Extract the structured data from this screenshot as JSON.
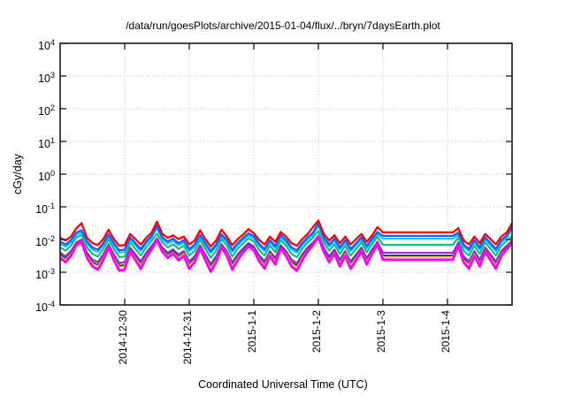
{
  "title": "/data/run/goesPlots/archive/2015-01-04/flux/../bryn/7daysEarth.plot",
  "x_axis_label": "Coordinated Universal Time (UTC)",
  "y_axis_label": "cGy/day",
  "colors": {
    "background": "#ffffff",
    "border": "#1a1a1a",
    "grid": "#b8b8b8",
    "text": "#000000"
  },
  "chart_data": {
    "type": "line",
    "title": "/data/run/goesPlots/archive/2015-01-04/flux/../bryn/7daysEarth.plot",
    "xlabel": "Coordinated Universal Time (UTC)",
    "ylabel": "cGy/day",
    "grid": {
      "show": true,
      "style": "dotted"
    },
    "legend": "none",
    "x_axis": {
      "unit": "days since 2014-12-29 00:00 UTC",
      "range_days": [
        0,
        7
      ],
      "sample_step_days": 0.0833333,
      "tick_days": [
        1,
        2,
        3,
        4,
        5,
        6
      ],
      "tick_labels": [
        "2014-12-30",
        "2014-12-31",
        "2015-1-1",
        "2015-1-2",
        "2015-1-3",
        "2015-1-4"
      ]
    },
    "y_axis": {
      "scale": "log10",
      "unit": "cGy/day",
      "range_log": [
        -4,
        4
      ],
      "exponents": [
        4,
        3,
        2,
        1,
        0,
        -1,
        -2,
        -3,
        -4
      ]
    },
    "flat_data_gap_days": [
      5.0,
      6.083
    ],
    "series": [
      {
        "name": "green",
        "color": "#00c08a",
        "width": 2.1,
        "log10_values": [
          -2.24,
          -2.34,
          -2.19,
          -1.94,
          -1.86,
          -2.24,
          -2.44,
          -2.52,
          -2.29,
          -1.99,
          -2.29,
          -2.54,
          -2.52,
          -2.09,
          -2.29,
          -2.49,
          -2.24,
          -2.04,
          -1.82,
          -2.09,
          -2.24,
          -2.14,
          -2.29,
          -2.19,
          -2.49,
          -2.34,
          -2.02,
          -2.29,
          -2.56,
          -2.34,
          -1.99,
          -2.19,
          -2.52,
          -2.29,
          -2.12,
          -1.96,
          -2.06,
          -2.32,
          -2.49,
          -2.19,
          -2.39,
          -2.02,
          -2.19,
          -2.44,
          -2.54,
          -2.29,
          -2.09,
          -1.94,
          -1.74,
          -2.09,
          -2.34,
          -2.14,
          -2.44,
          -2.19,
          -2.49,
          -2.29,
          -2.09,
          -2.39,
          -2.14,
          -1.92,
          -2.16,
          -2.16,
          -2.16,
          -2.16,
          -2.16,
          -2.16,
          -2.16,
          -2.16,
          -2.16,
          -2.16,
          -2.16,
          -2.16,
          -2.16,
          -2.16,
          -1.94,
          -2.34,
          -2.49,
          -2.19,
          -2.44,
          -2.09,
          -2.29,
          -2.49,
          -2.19,
          -2.04,
          -1.89
        ]
      },
      {
        "name": "brown",
        "color": "#a0522d",
        "width": 1.6,
        "log10_values": [
          -2.39,
          -2.5,
          -2.34,
          -2.08,
          -1.99,
          -2.39,
          -2.6,
          -2.68,
          -2.44,
          -2.13,
          -2.44,
          -2.71,
          -2.68,
          -2.23,
          -2.44,
          -2.65,
          -2.39,
          -2.18,
          -1.95,
          -2.23,
          -2.39,
          -2.29,
          -2.44,
          -2.34,
          -2.65,
          -2.5,
          -2.16,
          -2.44,
          -2.73,
          -2.5,
          -2.13,
          -2.34,
          -2.68,
          -2.44,
          -2.26,
          -2.1,
          -2.2,
          -2.47,
          -2.65,
          -2.34,
          -2.55,
          -2.16,
          -2.34,
          -2.6,
          -2.71,
          -2.44,
          -2.23,
          -2.08,
          -1.87,
          -2.23,
          -2.5,
          -2.29,
          -2.6,
          -2.34,
          -2.65,
          -2.44,
          -2.23,
          -2.55,
          -2.29,
          -2.05,
          -2.41,
          -2.41,
          -2.41,
          -2.41,
          -2.41,
          -2.41,
          -2.41,
          -2.41,
          -2.41,
          -2.41,
          -2.41,
          -2.41,
          -2.41,
          -2.41,
          -2.08,
          -2.5,
          -2.65,
          -2.34,
          -2.6,
          -2.23,
          -2.44,
          -2.65,
          -2.34,
          -2.18,
          -2.02
        ]
      },
      {
        "name": "purple",
        "color": "#9a30c8",
        "width": 1.9,
        "log10_values": [
          -2.41,
          -2.52,
          -2.36,
          -2.1,
          -2.01,
          -2.41,
          -2.62,
          -2.7,
          -2.46,
          -2.15,
          -2.46,
          -2.73,
          -2.7,
          -2.25,
          -2.46,
          -2.67,
          -2.41,
          -2.2,
          -1.97,
          -2.25,
          -2.41,
          -2.31,
          -2.46,
          -2.36,
          -2.67,
          -2.52,
          -2.18,
          -2.46,
          -2.75,
          -2.52,
          -2.15,
          -2.36,
          -2.7,
          -2.46,
          -2.28,
          -2.12,
          -2.22,
          -2.49,
          -2.67,
          -2.36,
          -2.57,
          -2.18,
          -2.36,
          -2.62,
          -2.73,
          -2.46,
          -2.25,
          -2.1,
          -1.89,
          -2.25,
          -2.52,
          -2.31,
          -2.62,
          -2.36,
          -2.67,
          -2.46,
          -2.25,
          -2.57,
          -2.31,
          -2.07,
          -2.4,
          -2.4,
          -2.4,
          -2.4,
          -2.4,
          -2.4,
          -2.4,
          -2.4,
          -2.4,
          -2.4,
          -2.4,
          -2.4,
          -2.4,
          -2.4,
          -2.1,
          -2.52,
          -2.67,
          -2.36,
          -2.62,
          -2.25,
          -2.46,
          -2.67,
          -2.36,
          -2.2,
          -2.04
        ]
      },
      {
        "name": "navy",
        "color": "#202898",
        "width": 1.9,
        "log10_values": [
          -2.47,
          -2.58,
          -2.42,
          -2.14,
          -2.05,
          -2.47,
          -2.69,
          -2.78,
          -2.53,
          -2.2,
          -2.53,
          -2.8,
          -2.78,
          -2.31,
          -2.53,
          -2.75,
          -2.47,
          -2.25,
          -2.01,
          -2.31,
          -2.47,
          -2.36,
          -2.53,
          -2.42,
          -2.75,
          -2.58,
          -2.23,
          -2.53,
          -2.82,
          -2.58,
          -2.2,
          -2.42,
          -2.78,
          -2.53,
          -2.34,
          -2.16,
          -2.27,
          -2.56,
          -2.75,
          -2.42,
          -2.64,
          -2.23,
          -2.42,
          -2.69,
          -2.8,
          -2.53,
          -2.31,
          -2.14,
          -1.92,
          -2.31,
          -2.58,
          -2.36,
          -2.69,
          -2.42,
          -2.75,
          -2.53,
          -2.31,
          -2.64,
          -2.36,
          -2.12,
          -2.49,
          -2.49,
          -2.49,
          -2.49,
          -2.49,
          -2.49,
          -2.49,
          -2.49,
          -2.49,
          -2.49,
          -2.49,
          -2.49,
          -2.49,
          -2.49,
          -2.14,
          -2.58,
          -2.75,
          -2.42,
          -2.69,
          -2.31,
          -2.53,
          -2.75,
          -2.42,
          -2.25,
          -2.09
        ]
      },
      {
        "name": "yellow",
        "color": "#f2e400",
        "width": 2.1,
        "log10_values": [
          -2.51,
          -2.63,
          -2.45,
          -2.17,
          -2.07,
          -2.51,
          -2.74,
          -2.83,
          -2.57,
          -2.22,
          -2.57,
          -2.86,
          -2.83,
          -2.34,
          -2.57,
          -2.8,
          -2.51,
          -2.28,
          -2.03,
          -2.34,
          -2.51,
          -2.4,
          -2.57,
          -2.45,
          -2.8,
          -2.63,
          -2.26,
          -2.57,
          -2.88,
          -2.63,
          -2.22,
          -2.45,
          -2.83,
          -2.57,
          -2.37,
          -2.19,
          -2.3,
          -2.6,
          -2.8,
          -2.45,
          -2.68,
          -2.26,
          -2.45,
          -2.74,
          -2.86,
          -2.57,
          -2.34,
          -2.17,
          -1.94,
          -2.34,
          -2.63,
          -2.4,
          -2.74,
          -2.45,
          -2.8,
          -2.57,
          -2.34,
          -2.68,
          -2.4,
          -2.14,
          -2.54,
          -2.54,
          -2.54,
          -2.54,
          -2.54,
          -2.54,
          -2.54,
          -2.54,
          -2.54,
          -2.54,
          -2.54,
          -2.54,
          -2.54,
          -2.54,
          -2.17,
          -2.63,
          -2.8,
          -2.45,
          -2.74,
          -2.34,
          -2.57,
          -2.8,
          -2.45,
          -2.28,
          -2.11
        ]
      },
      {
        "name": "magenta",
        "color": "#ff00ff",
        "width": 3,
        "log10_values": [
          -2.56,
          -2.69,
          -2.5,
          -2.17,
          -2.07,
          -2.56,
          -2.82,
          -2.92,
          -2.63,
          -2.24,
          -2.63,
          -2.95,
          -2.92,
          -2.37,
          -2.63,
          -2.89,
          -2.56,
          -2.3,
          -2.01,
          -2.37,
          -2.56,
          -2.43,
          -2.63,
          -2.5,
          -2.89,
          -2.69,
          -2.27,
          -2.63,
          -2.98,
          -2.69,
          -2.24,
          -2.5,
          -2.92,
          -2.63,
          -2.4,
          -2.2,
          -2.33,
          -2.66,
          -2.89,
          -2.5,
          -2.76,
          -2.27,
          -2.5,
          -2.82,
          -2.95,
          -2.63,
          -2.37,
          -2.17,
          -1.91,
          -2.37,
          -2.69,
          -2.43,
          -2.82,
          -2.5,
          -2.89,
          -2.63,
          -2.37,
          -2.76,
          -2.43,
          -2.14,
          -2.62,
          -2.62,
          -2.62,
          -2.62,
          -2.62,
          -2.62,
          -2.62,
          -2.62,
          -2.62,
          -2.62,
          -2.62,
          -2.62,
          -2.62,
          -2.62,
          -2.17,
          -2.69,
          -2.89,
          -2.5,
          -2.82,
          -2.37,
          -2.63,
          -2.89,
          -2.5,
          -2.3,
          -2.11
        ]
      },
      {
        "name": "cyan",
        "color": "#00c0f0",
        "width": 1.8,
        "log10_values": [
          -2.13,
          -2.22,
          -2.09,
          -1.86,
          -1.79,
          -2.13,
          -2.31,
          -2.38,
          -2.18,
          -1.91,
          -2.18,
          -2.4,
          -2.38,
          -2.0,
          -2.18,
          -2.36,
          -2.13,
          -1.95,
          -1.65,
          -2.0,
          -2.13,
          -2.04,
          -2.18,
          -2.09,
          -2.36,
          -2.22,
          -1.93,
          -2.18,
          -2.42,
          -2.22,
          -1.91,
          -2.09,
          -2.38,
          -2.18,
          -2.02,
          -1.88,
          -1.97,
          -2.2,
          -2.36,
          -2.09,
          -2.27,
          -1.93,
          -2.09,
          -2.31,
          -2.4,
          -2.18,
          -2.0,
          -1.86,
          -1.57,
          -2.0,
          -2.22,
          -2.04,
          -2.31,
          -2.09,
          -2.36,
          -2.18,
          -2.0,
          -2.27,
          -2.04,
          -1.84,
          -1.97,
          -1.97,
          -1.97,
          -1.97,
          -1.97,
          -1.97,
          -1.97,
          -1.97,
          -1.97,
          -1.97,
          -1.97,
          -1.97,
          -1.97,
          -1.97,
          -1.86,
          -2.22,
          -2.36,
          -2.09,
          -2.31,
          -2.0,
          -2.18,
          -2.36,
          -2.09,
          -1.95,
          -1.69
        ]
      },
      {
        "name": "blue",
        "color": "#1e5aff",
        "width": 2.3,
        "log10_values": [
          -2.06,
          -2.15,
          -2.02,
          -1.79,
          -1.72,
          -2.06,
          -2.24,
          -2.31,
          -2.11,
          -1.84,
          -2.11,
          -2.33,
          -2.31,
          -1.93,
          -2.11,
          -2.29,
          -2.06,
          -1.88,
          -1.58,
          -1.93,
          -2.06,
          -1.97,
          -2.11,
          -2.02,
          -2.29,
          -2.15,
          -1.86,
          -2.11,
          -2.35,
          -2.15,
          -1.84,
          -2.02,
          -2.31,
          -2.11,
          -1.95,
          -1.81,
          -1.9,
          -2.13,
          -2.29,
          -2.02,
          -2.2,
          -1.86,
          -2.02,
          -2.24,
          -2.33,
          -2.11,
          -1.93,
          -1.79,
          -1.5,
          -1.93,
          -2.15,
          -1.97,
          -2.24,
          -2.02,
          -2.29,
          -2.11,
          -1.93,
          -2.2,
          -1.97,
          -1.77,
          -1.89,
          -1.89,
          -1.89,
          -1.89,
          -1.89,
          -1.89,
          -1.89,
          -1.89,
          -1.89,
          -1.89,
          -1.89,
          -1.89,
          -1.89,
          -1.89,
          -1.79,
          -2.15,
          -2.29,
          -2.02,
          -2.24,
          -1.93,
          -2.11,
          -2.29,
          -2.02,
          -1.88,
          -1.62
        ]
      },
      {
        "name": "red",
        "color": "#ff0000",
        "width": 2.3,
        "log10_values": [
          -1.95,
          -2.03,
          -1.91,
          -1.66,
          -1.5,
          -1.95,
          -2.11,
          -2.17,
          -1.99,
          -1.7,
          -1.99,
          -2.19,
          -2.17,
          -1.83,
          -1.99,
          -2.15,
          -1.95,
          -1.79,
          -1.45,
          -1.83,
          -1.95,
          -1.87,
          -1.99,
          -1.91,
          -2.15,
          -2.03,
          -1.72,
          -1.99,
          -2.21,
          -2.03,
          -1.7,
          -1.91,
          -2.17,
          -1.99,
          -1.85,
          -1.68,
          -1.81,
          -2.01,
          -2.15,
          -1.91,
          -2.07,
          -1.77,
          -1.91,
          -2.11,
          -2.19,
          -1.99,
          -1.83,
          -1.62,
          -1.42,
          -1.83,
          -2.03,
          -1.87,
          -2.11,
          -1.91,
          -2.15,
          -1.99,
          -1.83,
          -2.07,
          -1.87,
          -1.62,
          -1.78,
          -1.78,
          -1.78,
          -1.78,
          -1.78,
          -1.78,
          -1.78,
          -1.78,
          -1.78,
          -1.78,
          -1.78,
          -1.78,
          -1.78,
          -1.78,
          -1.65,
          -2.03,
          -2.15,
          -1.91,
          -2.11,
          -1.83,
          -1.99,
          -2.15,
          -1.91,
          -1.79,
          -1.5
        ]
      }
    ]
  }
}
